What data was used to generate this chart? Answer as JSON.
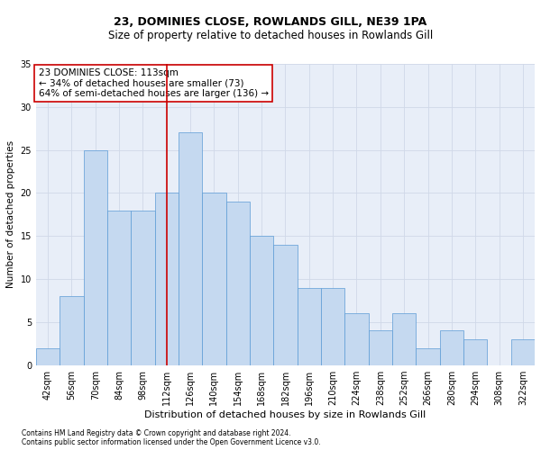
{
  "title": "23, DOMINIES CLOSE, ROWLANDS GILL, NE39 1PA",
  "subtitle": "Size of property relative to detached houses in Rowlands Gill",
  "xlabel": "Distribution of detached houses by size in Rowlands Gill",
  "ylabel": "Number of detached properties",
  "footnote1": "Contains HM Land Registry data © Crown copyright and database right 2024.",
  "footnote2": "Contains public sector information licensed under the Open Government Licence v3.0.",
  "categories": [
    "42sqm",
    "56sqm",
    "70sqm",
    "84sqm",
    "98sqm",
    "112sqm",
    "126sqm",
    "140sqm",
    "154sqm",
    "168sqm",
    "182sqm",
    "196sqm",
    "210sqm",
    "224sqm",
    "238sqm",
    "252sqm",
    "266sqm",
    "280sqm",
    "294sqm",
    "308sqm",
    "322sqm"
  ],
  "values": [
    2,
    8,
    25,
    18,
    18,
    20,
    27,
    20,
    19,
    15,
    14,
    9,
    9,
    6,
    4,
    6,
    2,
    4,
    3,
    0,
    3
  ],
  "bar_color": "#c5d9f0",
  "bar_edge_color": "#5b9bd5",
  "vline_x": 5,
  "vline_color": "#cc0000",
  "annotation_title": "23 DOMINIES CLOSE: 113sqm",
  "annotation_line2": "← 34% of detached houses are smaller (73)",
  "annotation_line3": "64% of semi-detached houses are larger (136) →",
  "annotation_box_color": "#cc0000",
  "annotation_bg": "#ffffff",
  "ylim": [
    0,
    35
  ],
  "yticks": [
    0,
    5,
    10,
    15,
    20,
    25,
    30,
    35
  ],
  "grid_color": "#d0d8e8",
  "bg_color": "#e8eef8",
  "title_fontsize": 9,
  "subtitle_fontsize": 8.5,
  "xlabel_fontsize": 8,
  "ylabel_fontsize": 7.5,
  "tick_fontsize": 7,
  "annotation_fontsize": 7.5,
  "footnote_fontsize": 5.5
}
